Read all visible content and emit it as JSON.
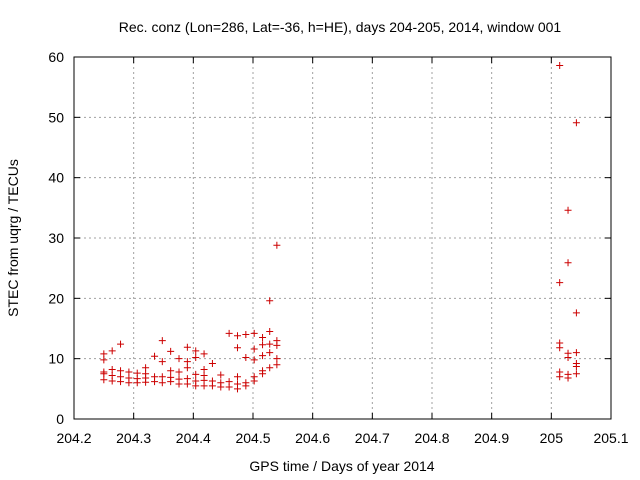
{
  "chart_data": {
    "type": "scatter",
    "title": "Rec. conz (Lon=286, Lat=-36, h=HE), days 204-205, 2014, window 001",
    "xlabel": "GPS time / Days of year 2014",
    "ylabel": "STEC from uqrg / TECUs",
    "xlim": [
      204.2,
      205.1
    ],
    "ylim": [
      0,
      60
    ],
    "xticks": [
      "204.2",
      "204.3",
      "204.4",
      "204.5",
      "204.6",
      "204.7",
      "204.8",
      "204.9",
      "205",
      "205.1"
    ],
    "yticks": [
      "0",
      "10",
      "20",
      "30",
      "40",
      "50",
      "60"
    ],
    "grid": true,
    "marker": "plus",
    "color": "#cc0000",
    "series": [
      {
        "points": [
          [
            204.25,
            6.5
          ],
          [
            204.25,
            7.5
          ],
          [
            204.25,
            7.8
          ],
          [
            204.25,
            9.8
          ],
          [
            204.25,
            10.8
          ],
          [
            204.264,
            6.3
          ],
          [
            204.264,
            7.2
          ],
          [
            204.264,
            8.2
          ],
          [
            204.264,
            11.3
          ],
          [
            204.278,
            6.2
          ],
          [
            204.278,
            7.0
          ],
          [
            204.278,
            8.0
          ],
          [
            204.278,
            12.4
          ],
          [
            204.292,
            6.0
          ],
          [
            204.292,
            6.8
          ],
          [
            204.292,
            7.8
          ],
          [
            204.306,
            6.0
          ],
          [
            204.306,
            6.7
          ],
          [
            204.306,
            7.6
          ],
          [
            204.32,
            6.1
          ],
          [
            204.32,
            6.8
          ],
          [
            204.32,
            7.5
          ],
          [
            204.32,
            8.5
          ],
          [
            204.335,
            6.2
          ],
          [
            204.335,
            7.0
          ],
          [
            204.335,
            10.4
          ],
          [
            204.348,
            6.0
          ],
          [
            204.348,
            7.0
          ],
          [
            204.348,
            9.5
          ],
          [
            204.348,
            13.0
          ],
          [
            204.362,
            6.2
          ],
          [
            204.362,
            6.9
          ],
          [
            204.362,
            8.0
          ],
          [
            204.362,
            11.2
          ],
          [
            204.376,
            5.8
          ],
          [
            204.376,
            6.6
          ],
          [
            204.376,
            7.8
          ],
          [
            204.376,
            10.0
          ],
          [
            204.39,
            5.8
          ],
          [
            204.39,
            6.7
          ],
          [
            204.39,
            8.5
          ],
          [
            204.39,
            9.5
          ],
          [
            204.39,
            11.9
          ],
          [
            204.404,
            5.5
          ],
          [
            204.404,
            6.3
          ],
          [
            204.404,
            7.4
          ],
          [
            204.404,
            10.2
          ],
          [
            204.404,
            11.3
          ],
          [
            204.418,
            5.5
          ],
          [
            204.418,
            6.4
          ],
          [
            204.418,
            7.2
          ],
          [
            204.418,
            8.2
          ],
          [
            204.418,
            10.8
          ],
          [
            204.432,
            5.5
          ],
          [
            204.432,
            6.3
          ],
          [
            204.432,
            9.2
          ],
          [
            204.446,
            5.3
          ],
          [
            204.446,
            6.0
          ],
          [
            204.446,
            7.3
          ],
          [
            204.46,
            5.3
          ],
          [
            204.46,
            6.2
          ],
          [
            204.46,
            14.2
          ],
          [
            204.474,
            5.0
          ],
          [
            204.474,
            5.8
          ],
          [
            204.474,
            7.0
          ],
          [
            204.474,
            11.8
          ],
          [
            204.474,
            13.8
          ],
          [
            204.488,
            5.5
          ],
          [
            204.488,
            6.0
          ],
          [
            204.488,
            10.2
          ],
          [
            204.488,
            14.0
          ],
          [
            204.502,
            6.3
          ],
          [
            204.502,
            7.0
          ],
          [
            204.502,
            9.8
          ],
          [
            204.502,
            11.6
          ],
          [
            204.502,
            14.2
          ],
          [
            204.516,
            7.5
          ],
          [
            204.516,
            8.0
          ],
          [
            204.516,
            10.5
          ],
          [
            204.516,
            12.3
          ],
          [
            204.516,
            13.5
          ],
          [
            204.528,
            8.5
          ],
          [
            204.528,
            11.0
          ],
          [
            204.528,
            12.4
          ],
          [
            204.528,
            14.5
          ],
          [
            204.528,
            19.6
          ],
          [
            204.54,
            9.0
          ],
          [
            204.54,
            10.0
          ],
          [
            204.54,
            12.2
          ],
          [
            204.54,
            13.0
          ],
          [
            204.54,
            28.8
          ],
          [
            205.014,
            7.0
          ],
          [
            205.014,
            7.8
          ],
          [
            205.014,
            11.8
          ],
          [
            205.014,
            12.6
          ],
          [
            205.014,
            22.6
          ],
          [
            205.014,
            58.6
          ],
          [
            205.028,
            6.8
          ],
          [
            205.028,
            7.4
          ],
          [
            205.028,
            10.2
          ],
          [
            205.028,
            10.9
          ],
          [
            205.028,
            25.9
          ],
          [
            205.028,
            34.6
          ],
          [
            205.042,
            7.5
          ],
          [
            205.042,
            8.7
          ],
          [
            205.042,
            9.2
          ],
          [
            205.042,
            11.0
          ],
          [
            205.042,
            17.6
          ],
          [
            205.042,
            49.1
          ]
        ]
      }
    ]
  }
}
